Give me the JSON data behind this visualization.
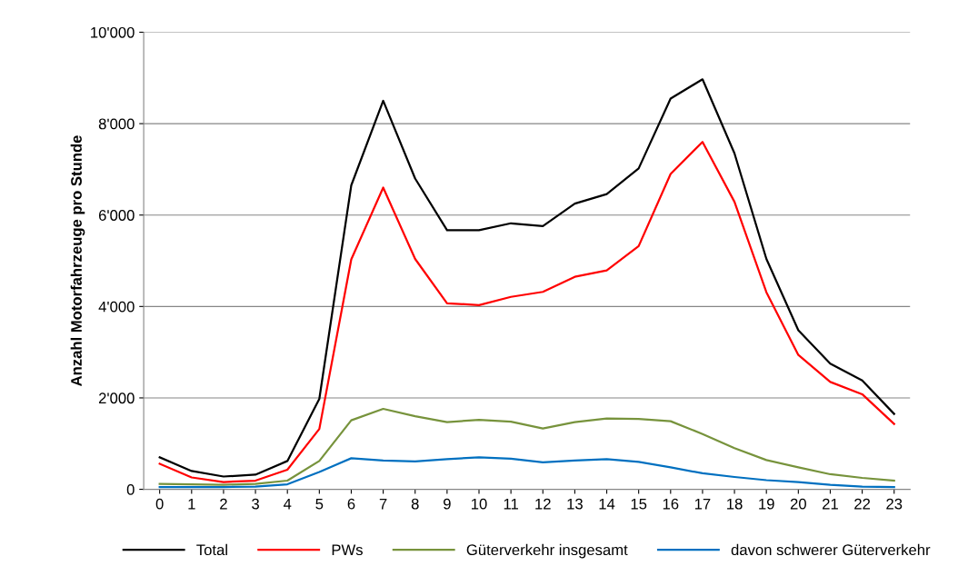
{
  "chart_data": {
    "type": "line",
    "ylabel": "Anzahl Motorfahrzeuge pro Stunde",
    "categories": [
      "0",
      "1",
      "2",
      "3",
      "4",
      "5",
      "6",
      "7",
      "8",
      "9",
      "10",
      "11",
      "12",
      "13",
      "14",
      "15",
      "16",
      "17",
      "18",
      "19",
      "20",
      "21",
      "22",
      "23"
    ],
    "series": [
      {
        "name": "Total",
        "color": "#000000",
        "values": [
          700,
          400,
          280,
          320,
          620,
          1980,
          6650,
          8500,
          6800,
          5670,
          5670,
          5820,
          5760,
          6250,
          6460,
          7020,
          8550,
          8970,
          7350,
          5040,
          3480,
          2750,
          2380,
          1650
        ]
      },
      {
        "name": "PWs",
        "color": "#ff0000",
        "values": [
          560,
          260,
          160,
          190,
          430,
          1320,
          5030,
          6600,
          5040,
          4070,
          4030,
          4210,
          4320,
          4650,
          4790,
          5320,
          6900,
          7600,
          6290,
          4310,
          2940,
          2350,
          2080,
          1430
        ]
      },
      {
        "name": "Güterverkehr insgesamt",
        "color": "#77933c",
        "values": [
          120,
          110,
          100,
          120,
          190,
          620,
          1510,
          1760,
          1600,
          1470,
          1520,
          1480,
          1330,
          1470,
          1550,
          1540,
          1490,
          1210,
          900,
          640,
          480,
          330,
          250,
          190
        ]
      },
      {
        "name": "davon schwerer Güterverkehr",
        "color": "#0070c0",
        "values": [
          50,
          50,
          50,
          60,
          110,
          380,
          680,
          630,
          610,
          660,
          700,
          670,
          590,
          630,
          660,
          600,
          480,
          350,
          270,
          200,
          160,
          100,
          60,
          50
        ]
      }
    ],
    "ylim": [
      0,
      10000
    ],
    "yticks": [
      {
        "value": 0,
        "label": "0"
      },
      {
        "value": 2000,
        "label": "2'000"
      },
      {
        "value": 4000,
        "label": "4'000"
      },
      {
        "value": 6000,
        "label": "6'000"
      },
      {
        "value": 8000,
        "label": "8'000"
      },
      {
        "value": 10000,
        "label": "10'000"
      }
    ],
    "grid": "y",
    "legend": "bottom",
    "marker": "none",
    "line_style": "solid"
  }
}
